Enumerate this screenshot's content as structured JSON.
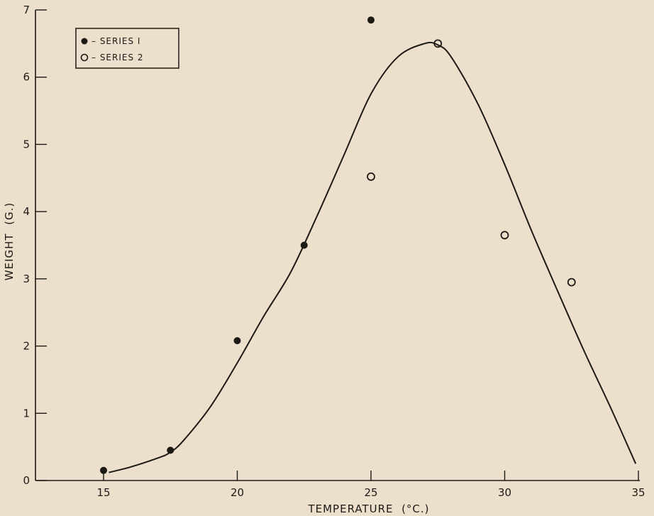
{
  "chart_data": {
    "type": "scatter",
    "xlabel": "TEMPERATURE  (°C.)",
    "ylabel": "WEIGHT  (G.)",
    "xlim": [
      12.5,
      35
    ],
    "ylim": [
      0,
      7
    ],
    "x_ticks": [
      15,
      20,
      25,
      30,
      35
    ],
    "y_ticks": [
      0,
      1,
      2,
      3,
      4,
      5,
      6,
      7
    ],
    "x_tick_labels": [
      "15",
      "20",
      "25",
      "30",
      "35"
    ],
    "y_tick_labels": [
      "0",
      "1",
      "2",
      "3",
      "4",
      "5",
      "6",
      "7"
    ],
    "grid": false,
    "legend_position": "top-left",
    "series": [
      {
        "name": "– SERIES  I",
        "marker": "filled-circle",
        "points": [
          {
            "x": 15,
            "y": 0.15
          },
          {
            "x": 17.5,
            "y": 0.45
          },
          {
            "x": 20,
            "y": 2.08
          },
          {
            "x": 22.5,
            "y": 3.5
          },
          {
            "x": 25,
            "y": 6.85
          }
        ]
      },
      {
        "name": "– SERIES  2",
        "marker": "open-circle",
        "points": [
          {
            "x": 25,
            "y": 4.52
          },
          {
            "x": 27.5,
            "y": 6.5
          },
          {
            "x": 30,
            "y": 3.65
          },
          {
            "x": 32.5,
            "y": 2.95
          }
        ]
      }
    ],
    "fitted_curve": [
      {
        "x": 15.2,
        "y": 0.12
      },
      {
        "x": 16,
        "y": 0.2
      },
      {
        "x": 17,
        "y": 0.33
      },
      {
        "x": 17.5,
        "y": 0.42
      },
      {
        "x": 18,
        "y": 0.6
      },
      {
        "x": 19,
        "y": 1.1
      },
      {
        "x": 20,
        "y": 1.75
      },
      {
        "x": 21,
        "y": 2.45
      },
      {
        "x": 22,
        "y": 3.1
      },
      {
        "x": 23,
        "y": 3.95
      },
      {
        "x": 24,
        "y": 4.85
      },
      {
        "x": 25,
        "y": 5.75
      },
      {
        "x": 26,
        "y": 6.3
      },
      {
        "x": 27,
        "y": 6.5
      },
      {
        "x": 27.5,
        "y": 6.48
      },
      {
        "x": 28,
        "y": 6.3
      },
      {
        "x": 29,
        "y": 5.6
      },
      {
        "x": 30,
        "y": 4.7
      },
      {
        "x": 31,
        "y": 3.72
      },
      {
        "x": 32,
        "y": 2.8
      },
      {
        "x": 33,
        "y": 1.9
      },
      {
        "x": 34,
        "y": 1.05
      },
      {
        "x": 34.9,
        "y": 0.25
      }
    ]
  },
  "colors": {
    "background": "#ecdfcb",
    "ink": "#1d1a16"
  }
}
